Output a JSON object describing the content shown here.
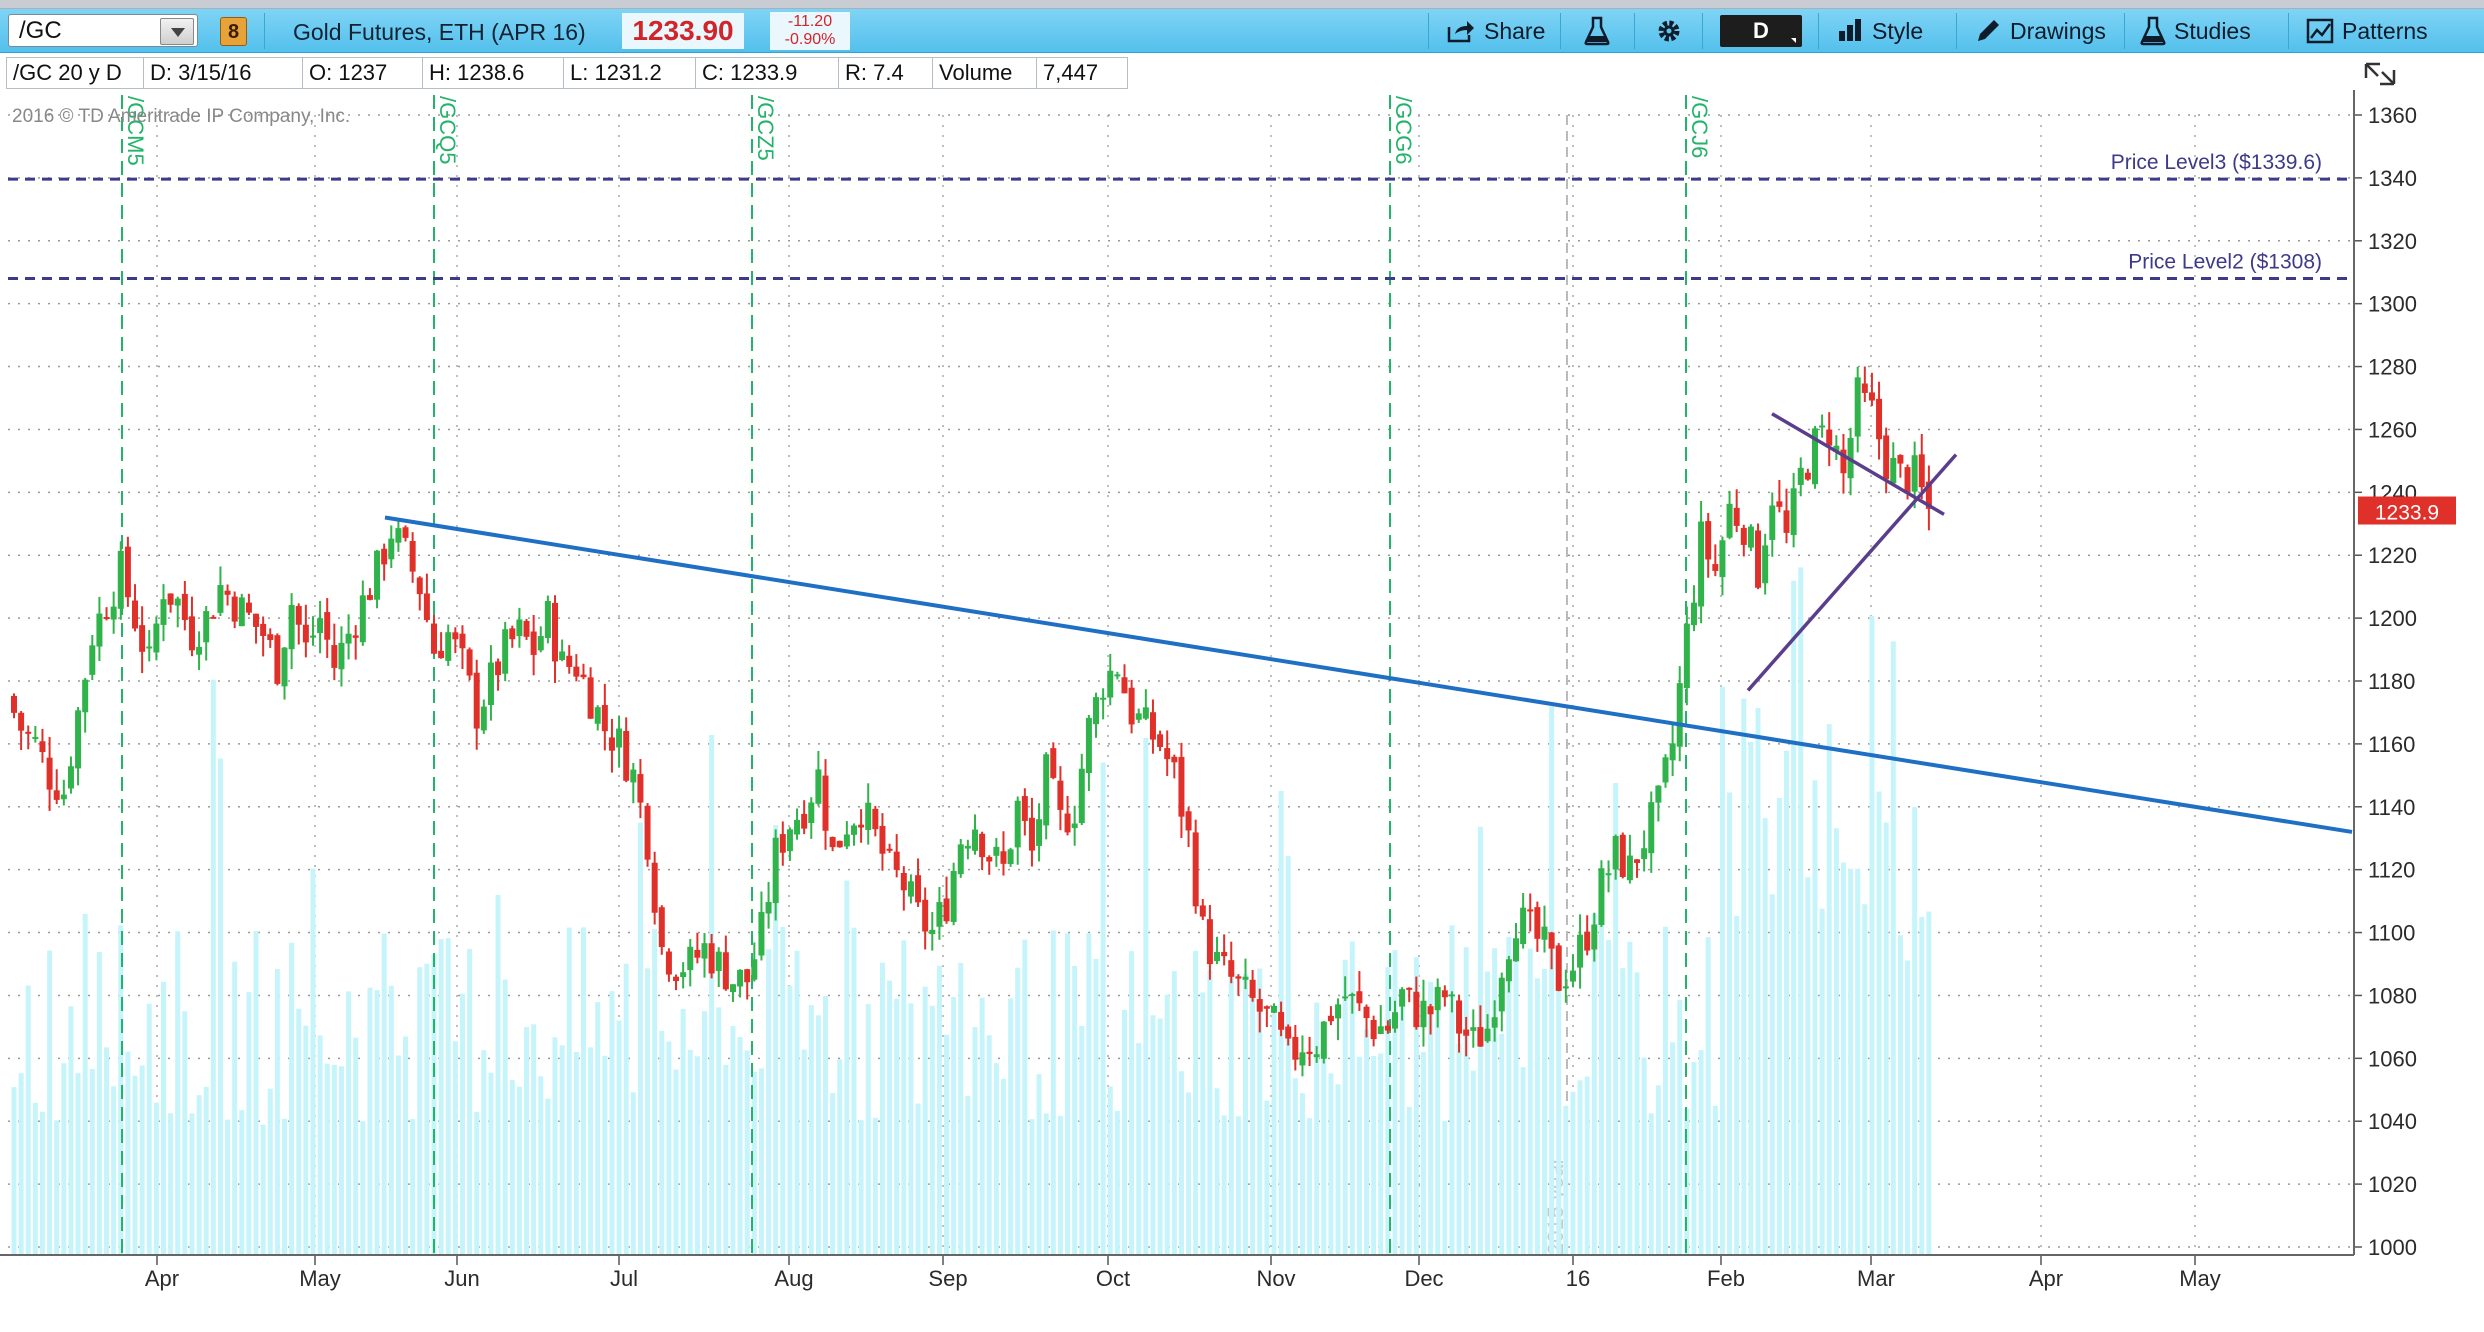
{
  "toolbar": {
    "symbol": "/GC",
    "link_group": "8",
    "description": "Gold Futures, ETH (APR 16)",
    "last_price": "1233.90",
    "net_change": "-11.20",
    "net_change_pct": "-0.90%",
    "share_label": "Share",
    "aggregation_label": "D",
    "style_label": "Style",
    "drawings_label": "Drawings",
    "studies_label": "Studies",
    "patterns_label": "Patterns",
    "accent_color": "#53c0ec"
  },
  "infobar": {
    "instrument": "/GC 20 y D",
    "date": "D: 3/15/16",
    "open": "O: 1237",
    "high": "H: 1238.6",
    "low": "L: 1231.2",
    "close": "C: 1233.9",
    "range": "R: 7.4",
    "volume_label": "Volume",
    "volume_value": "7,447"
  },
  "chart_data": {
    "type": "candlestick",
    "copyright": "2016 © TD Ameritrade IP Company, Inc.",
    "y_ticks": [
      1000,
      1020,
      1040,
      1060,
      1080,
      1100,
      1120,
      1140,
      1160,
      1180,
      1200,
      1220,
      1240,
      1260,
      1280,
      1300,
      1320,
      1340,
      1360
    ],
    "ylim": [
      990,
      1365
    ],
    "x_labels": [
      "Apr",
      "May",
      "Jun",
      "Jul",
      "Aug",
      "Sep",
      "Oct",
      "Nov",
      "Dec",
      "16",
      "Feb",
      "Mar",
      "Apr",
      "May"
    ],
    "last_price_tag": "1233.9",
    "year_marker": "2015 year",
    "expirations": [
      "/GCM5",
      "/GCQ5",
      "/GCZ5",
      "/GCG6",
      "/GCJ6"
    ],
    "price_levels": [
      {
        "label": "Price Level3 ($1339.6)",
        "value": 1339.6
      },
      {
        "label": "Price Level2 ($1308)",
        "value": 1308
      }
    ],
    "close_path": [
      1175,
      1165,
      1160,
      1150,
      1145,
      1170,
      1195,
      1205,
      1215,
      1200,
      1185,
      1210,
      1205,
      1195,
      1200,
      1210,
      1205,
      1200,
      1195,
      1185,
      1205,
      1190,
      1200,
      1185,
      1195,
      1205,
      1215,
      1228,
      1220,
      1210,
      1190,
      1195,
      1185,
      1170,
      1180,
      1190,
      1195,
      1190,
      1200,
      1185,
      1185,
      1175,
      1165,
      1160,
      1150,
      1130,
      1095,
      1090,
      1090,
      1095,
      1090,
      1085,
      1085,
      1100,
      1125,
      1135,
      1140,
      1150,
      1125,
      1135,
      1140,
      1130,
      1120,
      1115,
      1105,
      1100,
      1110,
      1130,
      1135,
      1125,
      1120,
      1140,
      1125,
      1150,
      1135,
      1140,
      1165,
      1180,
      1185,
      1170,
      1165,
      1160,
      1150,
      1130,
      1100,
      1090,
      1085,
      1080,
      1075,
      1070,
      1060,
      1065,
      1065,
      1075,
      1080,
      1075,
      1070,
      1070,
      1080,
      1075,
      1075,
      1080,
      1070,
      1065,
      1070,
      1090,
      1105,
      1100,
      1095,
      1085,
      1090,
      1100,
      1115,
      1125,
      1120,
      1130,
      1140,
      1160,
      1195,
      1225,
      1215,
      1235,
      1230,
      1215,
      1240,
      1225,
      1245,
      1255,
      1260,
      1245,
      1270,
      1265,
      1250,
      1245,
      1245,
      1234
    ],
    "trendlines": [
      {
        "from": [
          "May peak",
          1232
        ],
        "to": [
          "right edge",
          1132
        ],
        "color": "#1f6fc5"
      },
      {
        "from": [
          "Feb",
          1265
        ],
        "to": [
          "Mar",
          1233
        ],
        "color": "#5a3e8c"
      },
      {
        "from": [
          "Feb",
          1177
        ],
        "to": [
          "Mar",
          1252
        ],
        "color": "#5a3e8c"
      }
    ],
    "up_color": "#2fb34a",
    "down_color": "#e0302a",
    "volume_color": "#c6f4fb",
    "grid": true
  }
}
